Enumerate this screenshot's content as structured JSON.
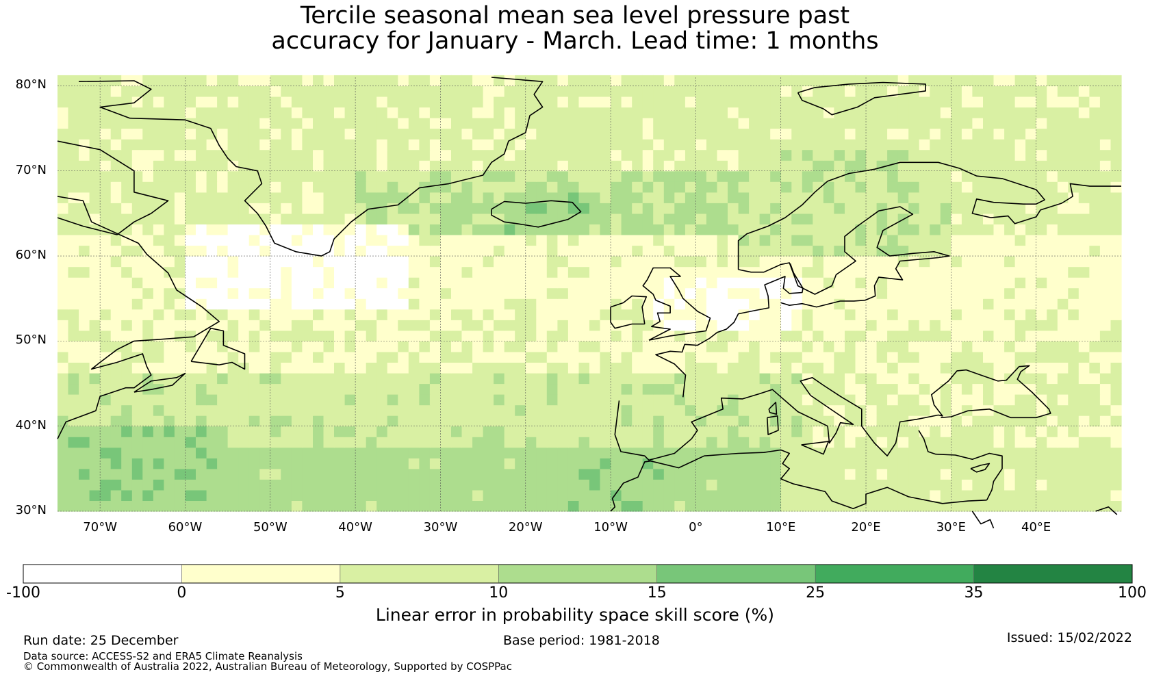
{
  "title": {
    "line1": "Tercile seasonal mean sea level pressure past",
    "line2": "accuracy for January - March. Lead time: 1 months"
  },
  "map": {
    "lat_labels": [
      "80°N",
      "70°N",
      "60°N",
      "50°N",
      "40°N",
      "30°N"
    ],
    "lon_labels": [
      "70°W",
      "60°W",
      "50°W",
      "40°W",
      "30°W",
      "20°W",
      "10°W",
      "0°",
      "10°E",
      "20°E",
      "30°E",
      "40°E"
    ],
    "lat_range": [
      30,
      81
    ],
    "lon_range": [
      -75,
      50
    ]
  },
  "colorbar": {
    "ticks": [
      "-100",
      "0",
      "5",
      "10",
      "15",
      "25",
      "35",
      "100"
    ],
    "colors": [
      "#ffffff",
      "#ffffcc",
      "#d9f0a3",
      "#addd8e",
      "#78c679",
      "#41ab5d",
      "#238443"
    ],
    "label": "Linear error in probability space skill score (%)"
  },
  "footer": {
    "run_date": "Run date: 25 December",
    "base_period": "Base period: 1981-2018",
    "issued": "Issued: 15/02/2022",
    "data_source": "Data source: ACCESS-S2 and ERA5 Climate Reanalysis",
    "copyright": "© Commonwealth of Australia 2022, Australian Bureau of Meteorology, Supported by COSPPac"
  }
}
